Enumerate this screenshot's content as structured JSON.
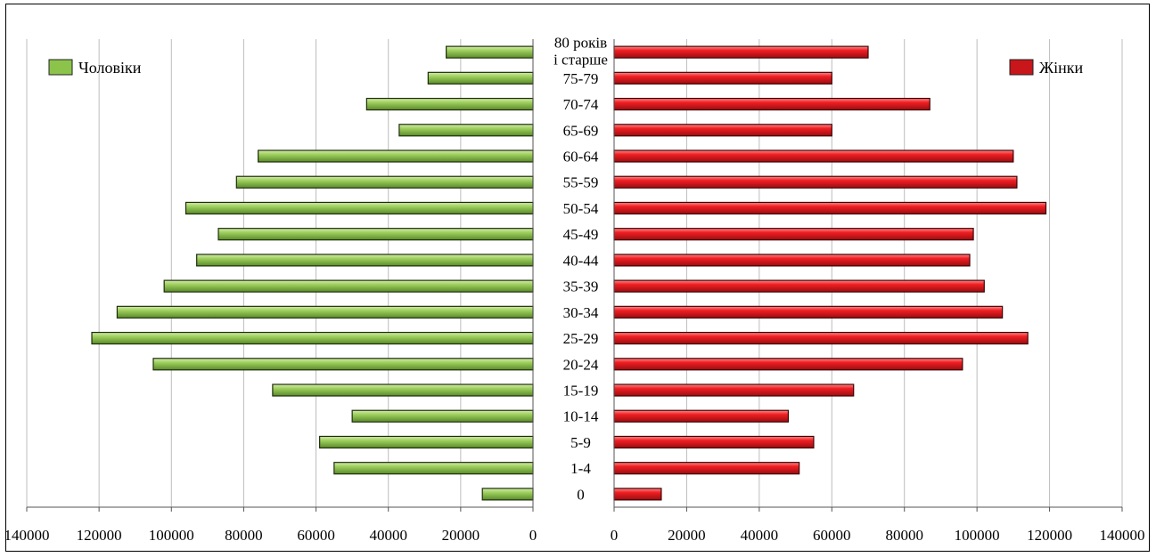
{
  "chart_data": {
    "type": "bar",
    "orientation": "horizontal-pyramid",
    "categories": [
      "0",
      "1-4",
      "5-9",
      "10-14",
      "15-19",
      "20-24",
      "25-29",
      "30-34",
      "35-39",
      "40-44",
      "45-49",
      "50-54",
      "55-59",
      "60-64",
      "65-69",
      "70-74",
      "75-79",
      "80 років і старше"
    ],
    "category_lines": [
      [
        "0"
      ],
      [
        "1-4"
      ],
      [
        "5-9"
      ],
      [
        "10-14"
      ],
      [
        "15-19"
      ],
      [
        "20-24"
      ],
      [
        "25-29"
      ],
      [
        "30-34"
      ],
      [
        "35-39"
      ],
      [
        "40-44"
      ],
      [
        "45-49"
      ],
      [
        "50-54"
      ],
      [
        "55-59"
      ],
      [
        "60-64"
      ],
      [
        "65-69"
      ],
      [
        "70-74"
      ],
      [
        "75-79"
      ],
      [
        "80 років",
        "і старше"
      ]
    ],
    "series": [
      {
        "name": "Чоловіки",
        "color": "#8cc34a",
        "side": "left",
        "values": [
          14000,
          55000,
          59000,
          50000,
          72000,
          105000,
          122000,
          115000,
          102000,
          93000,
          87000,
          96000,
          82000,
          76000,
          37000,
          46000,
          29000,
          24000
        ]
      },
      {
        "name": "Жінки",
        "color": "#e8171b",
        "side": "right",
        "values": [
          13000,
          51000,
          55000,
          48000,
          66000,
          96000,
          114000,
          107000,
          102000,
          98000,
          99000,
          119000,
          111000,
          110000,
          60000,
          87000,
          60000,
          70000
        ]
      }
    ],
    "xlim": [
      0,
      140000
    ],
    "x_ticks": [
      "0",
      "20000",
      "40000",
      "60000",
      "80000",
      "100000",
      "120000",
      "140000"
    ],
    "x_tick_values": [
      0,
      20000,
      40000,
      60000,
      80000,
      100000,
      120000,
      140000
    ],
    "grid": "vertical",
    "legend": {
      "left_label": "Чоловіки",
      "right_label": "Жінки",
      "left_position": "top-left",
      "right_position": "top-right"
    }
  }
}
